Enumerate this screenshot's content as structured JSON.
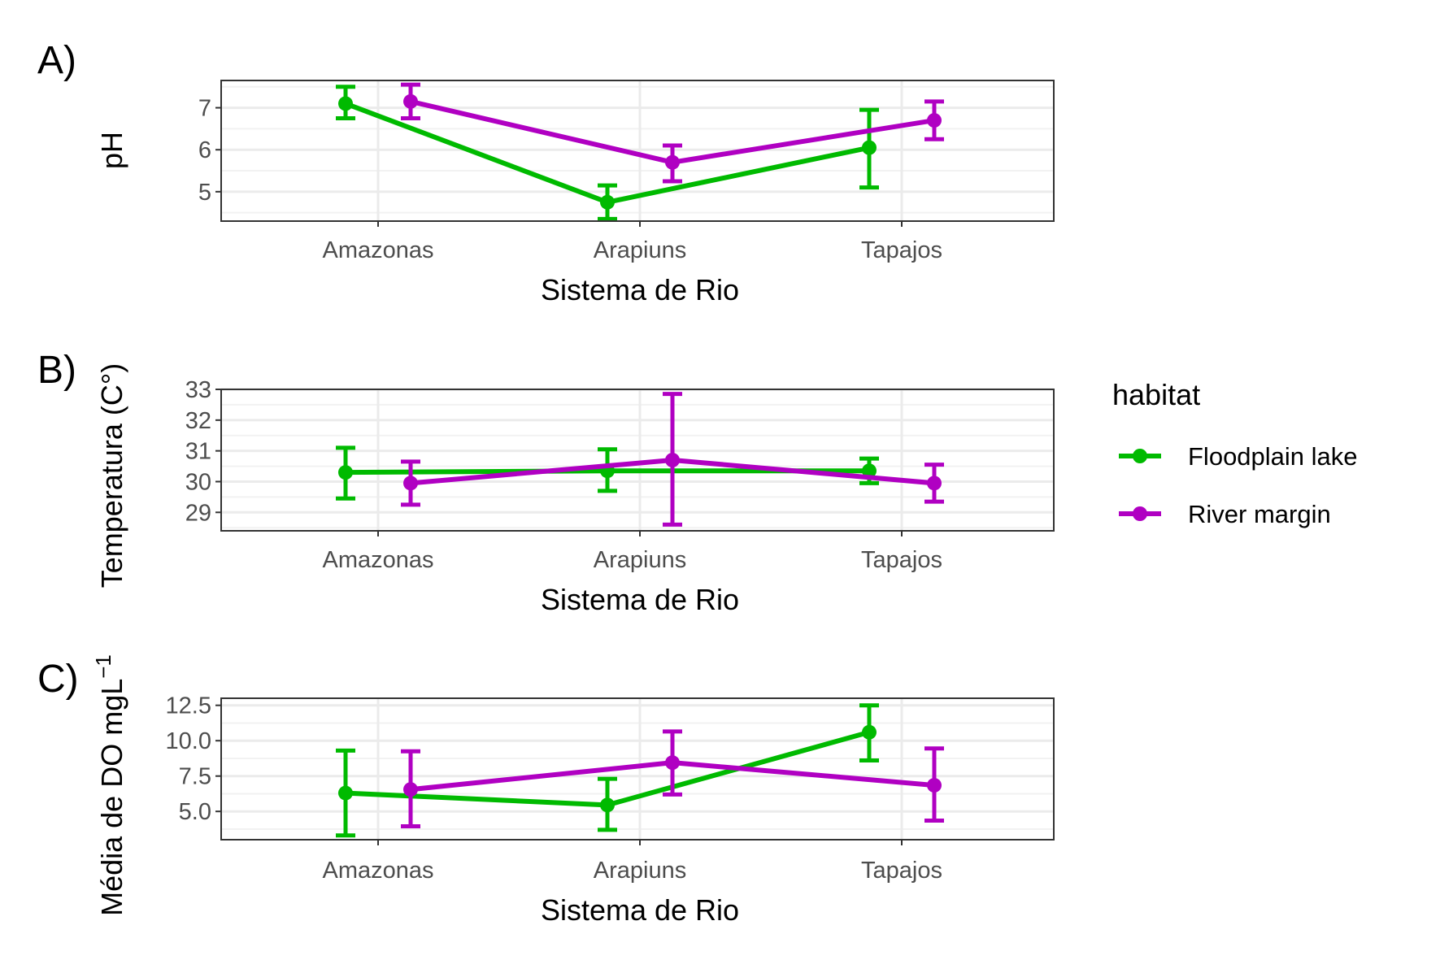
{
  "legend": {
    "title": "habitat",
    "entries": [
      "Floodplain lake",
      "River margin"
    ]
  },
  "colors": {
    "Floodplain lake": "#00BA00",
    "River margin": "#B000C2"
  },
  "chart_data": [
    {
      "type": "line",
      "panel_label": "A)",
      "xlabel": "Sistema de Rio",
      "ylabel": "pH",
      "categories": [
        "Amazonas",
        "Arapiuns",
        "Tapajos"
      ],
      "ylim": [
        4.3,
        7.65
      ],
      "yticks": [
        5,
        6,
        7
      ],
      "ytick_labels": [
        "5",
        "6",
        "7"
      ],
      "grid": true,
      "series": [
        {
          "name": "Floodplain lake",
          "values": [
            7.1,
            4.75,
            6.05
          ],
          "lower": [
            6.75,
            4.35,
            5.1
          ],
          "upper": [
            7.5,
            5.15,
            6.95
          ]
        },
        {
          "name": "River margin",
          "values": [
            7.15,
            5.7,
            6.7
          ],
          "lower": [
            6.75,
            5.25,
            6.25
          ],
          "upper": [
            7.55,
            6.1,
            7.15
          ]
        }
      ]
    },
    {
      "type": "line",
      "panel_label": "B)",
      "xlabel": "Sistema de Rio",
      "ylabel": "Temperatura (C°)",
      "categories": [
        "Amazonas",
        "Arapiuns",
        "Tapajos"
      ],
      "ylim": [
        28.4,
        33
      ],
      "yticks": [
        29,
        30,
        31,
        32,
        33
      ],
      "ytick_labels": [
        "29",
        "30",
        "31",
        "32",
        "33"
      ],
      "grid": true,
      "series": [
        {
          "name": "Floodplain lake",
          "values": [
            30.3,
            30.35,
            30.35
          ],
          "lower": [
            29.45,
            29.7,
            29.95
          ],
          "upper": [
            31.1,
            31.05,
            30.75
          ]
        },
        {
          "name": "River margin",
          "values": [
            29.95,
            30.7,
            29.95
          ],
          "lower": [
            29.25,
            28.6,
            29.35
          ],
          "upper": [
            30.65,
            32.85,
            30.55
          ]
        }
      ]
    },
    {
      "type": "line",
      "panel_label": "C)",
      "xlabel": "Sistema de Rio",
      "ylabel": "Média de DO mgL",
      "ylabel_superscript": "−1",
      "categories": [
        "Amazonas",
        "Arapiuns",
        "Tapajos"
      ],
      "ylim": [
        3,
        13
      ],
      "yticks": [
        5,
        7.5,
        10,
        12.5
      ],
      "ytick_labels": [
        "5.0",
        "7.5",
        "10.0",
        "12.5"
      ],
      "grid": true,
      "series": [
        {
          "name": "Floodplain lake",
          "values": [
            6.3,
            5.45,
            10.6
          ],
          "lower": [
            3.3,
            3.7,
            8.6
          ],
          "upper": [
            9.3,
            7.3,
            12.5
          ]
        },
        {
          "name": "River margin",
          "values": [
            6.55,
            8.45,
            6.85
          ],
          "lower": [
            3.95,
            6.2,
            4.35
          ],
          "upper": [
            9.25,
            10.65,
            9.45
          ]
        }
      ]
    }
  ]
}
